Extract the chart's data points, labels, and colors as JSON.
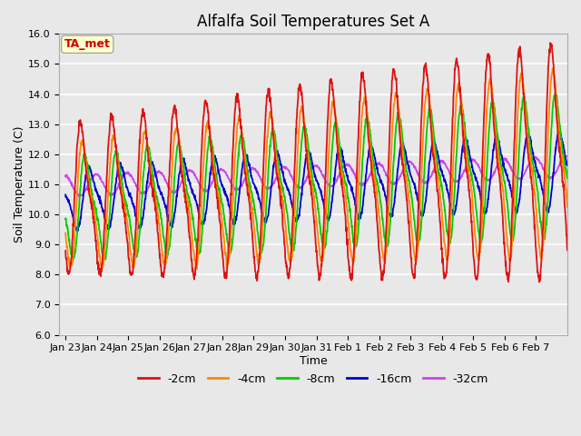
{
  "title": "Alfalfa Soil Temperatures Set A",
  "xlabel": "Time",
  "ylabel": "Soil Temperature (C)",
  "ylim": [
    6.0,
    16.0
  ],
  "yticks": [
    6.0,
    7.0,
    8.0,
    9.0,
    10.0,
    11.0,
    12.0,
    13.0,
    14.0,
    15.0,
    16.0
  ],
  "bg_color": "#e8e8e8",
  "plot_bg_color": "#e8e8e8",
  "grid_color": "#ffffff",
  "colors": {
    "-2cm": "#dd1111",
    "-4cm": "#ff8800",
    "-8cm": "#00cc00",
    "-16cm": "#0000cc",
    "-32cm": "#cc44ee"
  },
  "legend_labels": [
    "-2cm",
    "-4cm",
    "-8cm",
    "-16cm",
    "-32cm"
  ],
  "ta_met_label": "TA_met",
  "ta_met_color": "#cc0000",
  "ta_met_bg": "#ffffcc",
  "xtick_labels": [
    "Jan 23",
    "Jan 24",
    "Jan 25",
    "Jan 26",
    "Jan 27",
    "Jan 28",
    "Jan 29",
    "Jan 30",
    "Jan 31",
    "Feb 1",
    "Feb 2",
    "Feb 3",
    "Feb 4",
    "Feb 5",
    "Feb 6",
    "Feb 7"
  ],
  "n_points": 1600,
  "title_fontsize": 12,
  "axis_label_fontsize": 9,
  "tick_fontsize": 8,
  "legend_fontsize": 9
}
